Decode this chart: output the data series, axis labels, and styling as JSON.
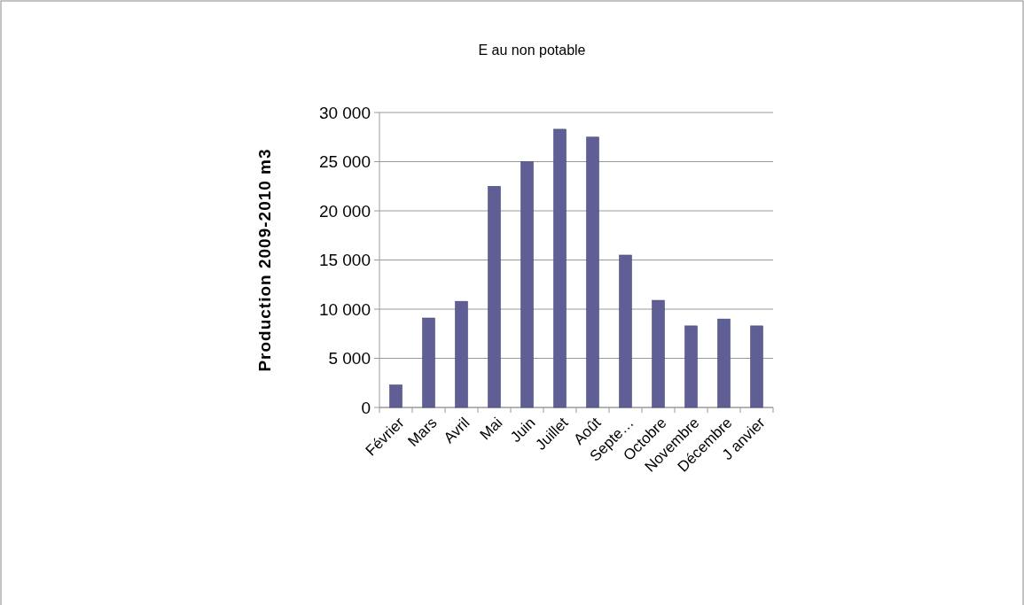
{
  "chart_data": {
    "type": "bar",
    "title": "E au non potable",
    "ylabel": "Production 2009-2010 m3",
    "categories": [
      "Février",
      "Mars",
      "Avril",
      "Mai",
      "Juin",
      "Juillet",
      "Août",
      "Septe…",
      "Octobre",
      "Novembre",
      "Décembre",
      "J anvier"
    ],
    "values": [
      2300,
      9100,
      10800,
      22500,
      25000,
      28300,
      27500,
      15500,
      10900,
      8300,
      9000,
      8300
    ],
    "color": "#5f5f95",
    "ylim": [
      0,
      30000
    ],
    "yticks": [
      {
        "value": 0,
        "label": "0"
      },
      {
        "value": 5000,
        "label": "5 000"
      },
      {
        "value": 10000,
        "label": "10 000"
      },
      {
        "value": 15000,
        "label": "15 000"
      },
      {
        "value": 20000,
        "label": "20 000"
      },
      {
        "value": 25000,
        "label": "25 000"
      },
      {
        "value": 30000,
        "label": "30 000"
      }
    ],
    "grid": "y",
    "legend": false
  }
}
